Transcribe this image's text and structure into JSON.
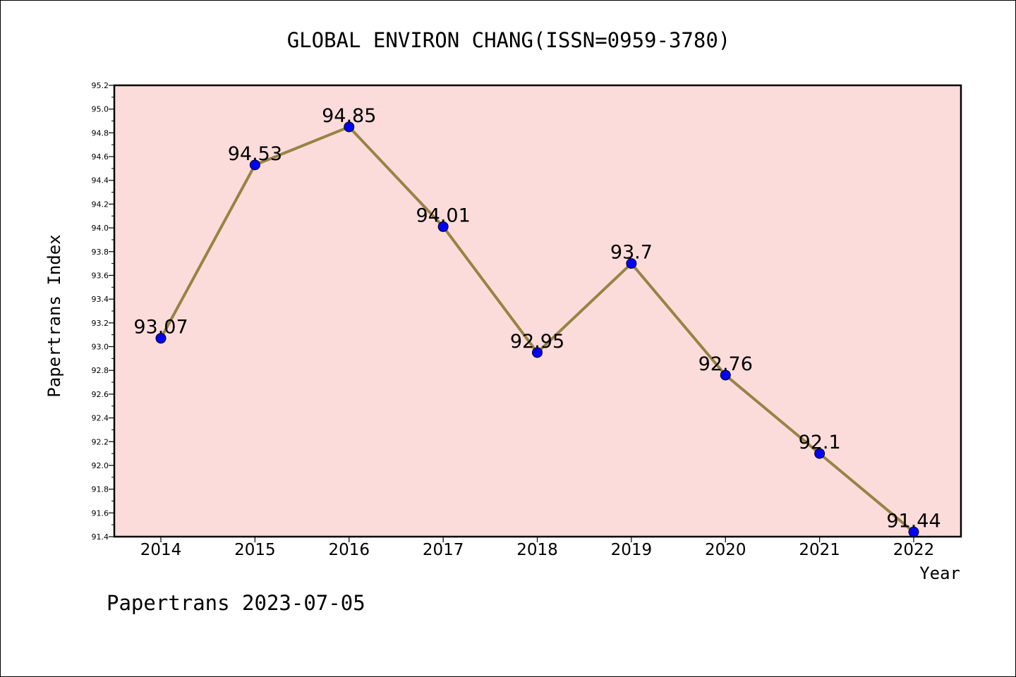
{
  "footer": "Papertrans 2023-07-05",
  "chart_data": {
    "type": "line",
    "title": "GLOBAL ENVIRON CHANG(ISSN=0959-3780)",
    "xlabel": "Year",
    "ylabel": "Papertrans Index",
    "categories": [
      "2014",
      "2015",
      "2016",
      "2017",
      "2018",
      "2019",
      "2020",
      "2021",
      "2022"
    ],
    "series": [
      {
        "values": [
          93.07,
          94.53,
          94.85,
          94.01,
          92.95,
          93.7,
          92.76,
          92.1,
          91.44
        ],
        "labels": [
          "93.07",
          "94.53",
          "94.85",
          "94.01",
          "92.95",
          "93.7",
          "92.76",
          "92.1",
          "91.44"
        ]
      }
    ],
    "ylim": [
      91.4,
      95.2
    ],
    "yticks": [
      "91.4",
      "91.6",
      "91.8",
      "92.0",
      "92.2",
      "92.4",
      "92.6",
      "92.8",
      "93.0",
      "93.2",
      "93.4",
      "93.6",
      "93.8",
      "94.0",
      "94.2",
      "94.4",
      "94.6",
      "94.8",
      "95.0",
      "95.2"
    ],
    "grid": false,
    "legend": "none",
    "colors": {
      "plot_background": "#fcdcdb",
      "line": "#968444",
      "marker": "#0000ff"
    }
  }
}
